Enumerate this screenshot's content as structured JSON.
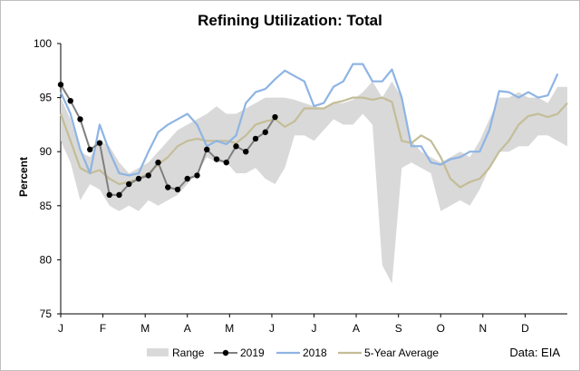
{
  "chart_data": {
    "type": "line",
    "title": "Refining Utilization: Total",
    "xlabel": "",
    "ylabel": "Percent",
    "ylim": [
      75,
      100
    ],
    "yticks": [
      75,
      80,
      85,
      90,
      95,
      100
    ],
    "xlim": [
      0,
      52
    ],
    "month_labels": [
      "J",
      "F",
      "M",
      "A",
      "M",
      "J",
      "J",
      "A",
      "S",
      "O",
      "N",
      "D"
    ],
    "month_positions": [
      0,
      4.33,
      8.67,
      13,
      17.33,
      21.67,
      26,
      30.33,
      34.67,
      39,
      43.33,
      47.67
    ],
    "source": "Data: EIA",
    "series": [
      {
        "name": "Range",
        "kind": "area",
        "color": "#d9d9d9",
        "x": [
          0,
          1,
          2,
          3,
          4,
          5,
          6,
          7,
          8,
          9,
          10,
          11,
          12,
          13,
          14,
          15,
          16,
          17,
          18,
          19,
          20,
          21,
          22,
          23,
          24,
          25,
          26,
          27,
          28,
          29,
          30,
          31,
          32,
          33,
          34,
          35,
          36,
          37,
          38,
          39,
          40,
          41,
          42,
          43,
          44,
          45,
          46,
          47,
          48,
          49,
          50,
          51,
          52
        ],
        "upper": [
          95.0,
          93.0,
          90.0,
          89.5,
          91.0,
          90.5,
          89.0,
          88.0,
          88.5,
          89.0,
          90.0,
          91.0,
          92.0,
          92.5,
          93.0,
          93.5,
          94.2,
          93.5,
          93.5,
          94.0,
          94.5,
          95.0,
          95.0,
          95.0,
          94.8,
          94.5,
          94.2,
          94.0,
          94.5,
          94.5,
          94.8,
          95.5,
          96.5,
          95.0,
          96.5,
          95.0,
          91.0,
          90.0,
          89.5,
          89.0,
          89.5,
          90.0,
          89.5,
          91.0,
          93.0,
          95.0,
          95.0,
          95.5,
          95.0,
          95.0,
          94.5,
          96.0,
          96.0
        ],
        "lower": [
          91.0,
          89.0,
          85.5,
          87.0,
          86.5,
          85.0,
          84.5,
          85.0,
          84.5,
          85.5,
          85.0,
          85.5,
          86.0,
          87.0,
          88.0,
          89.5,
          89.0,
          89.0,
          88.0,
          88.0,
          88.5,
          87.5,
          87.0,
          88.5,
          91.5,
          91.5,
          91.0,
          92.0,
          93.0,
          92.5,
          92.5,
          93.5,
          92.5,
          79.5,
          77.8,
          88.5,
          89.0,
          88.5,
          88.0,
          84.5,
          85.0,
          85.5,
          85.0,
          86.5,
          88.5,
          90.0,
          90.0,
          90.5,
          90.5,
          91.5,
          91.5,
          91.0,
          90.5
        ]
      },
      {
        "name": "2019",
        "kind": "line-markers",
        "color": "#7f7f7f",
        "marker_color": "#000000",
        "x": [
          0,
          1,
          2,
          3,
          4,
          5,
          6,
          7,
          8,
          9,
          10,
          11,
          12,
          13,
          14,
          15,
          16,
          17,
          18,
          19,
          20,
          21,
          22,
          23
        ],
        "values": [
          96.2,
          94.7,
          93.0,
          90.2,
          90.8,
          86.0,
          86.0,
          87.0,
          87.5,
          87.8,
          89.0,
          86.7,
          86.5,
          87.5,
          87.8,
          90.2,
          89.3,
          89.0,
          90.5,
          90.0,
          91.2,
          91.8,
          93.2,
          null
        ]
      },
      {
        "name": "2018",
        "kind": "line",
        "color": "#8eb4e3",
        "x": [
          0,
          1,
          2,
          3,
          4,
          5,
          6,
          7,
          8,
          9,
          10,
          11,
          12,
          13,
          14,
          15,
          16,
          17,
          18,
          19,
          20,
          21,
          22,
          23,
          24,
          25,
          26,
          27,
          28,
          29,
          30,
          31,
          32,
          33,
          34,
          35,
          36,
          37,
          38,
          39,
          40,
          41,
          42,
          43,
          44,
          45,
          46,
          47,
          48,
          49,
          50,
          51,
          52
        ],
        "values": [
          95.5,
          93.5,
          90.2,
          88.0,
          92.5,
          90.0,
          88.0,
          87.8,
          88.0,
          90.0,
          91.8,
          92.5,
          93.0,
          93.5,
          92.5,
          90.5,
          91.0,
          90.7,
          91.5,
          94.5,
          95.5,
          95.8,
          96.7,
          97.5,
          97.0,
          96.5,
          94.2,
          94.5,
          96.0,
          96.5,
          98.1,
          98.1,
          96.5,
          96.5,
          97.6,
          95.0,
          90.5,
          90.5,
          89.0,
          88.8,
          89.3,
          89.5,
          90.0,
          90.0,
          92.0,
          95.6,
          95.5,
          95.0,
          95.5,
          95.0,
          95.2,
          97.2,
          null
        ]
      },
      {
        "name": "5-Year Average",
        "kind": "line",
        "color": "#c4bd97",
        "x": [
          0,
          1,
          2,
          3,
          4,
          5,
          6,
          7,
          8,
          9,
          10,
          11,
          12,
          13,
          14,
          15,
          16,
          17,
          18,
          19,
          20,
          21,
          22,
          23,
          24,
          25,
          26,
          27,
          28,
          29,
          30,
          31,
          32,
          33,
          34,
          35,
          36,
          37,
          38,
          39,
          40,
          41,
          42,
          43,
          44,
          45,
          46,
          47,
          48,
          49,
          50,
          51,
          52
        ],
        "values": [
          93.5,
          91.0,
          88.5,
          88.0,
          88.3,
          87.5,
          87.0,
          87.2,
          87.5,
          88.0,
          88.8,
          89.5,
          90.5,
          91.0,
          91.2,
          91.0,
          91.0,
          91.0,
          90.8,
          91.5,
          92.5,
          92.8,
          93.0,
          92.3,
          92.8,
          94.0,
          94.0,
          94.0,
          94.5,
          94.7,
          95.0,
          95.0,
          94.8,
          95.0,
          94.6,
          91.0,
          90.8,
          91.5,
          91.0,
          89.5,
          87.5,
          86.7,
          87.2,
          87.5,
          88.5,
          90.0,
          91.0,
          92.5,
          93.3,
          93.5,
          93.2,
          93.5,
          94.5
        ]
      }
    ],
    "legend": {
      "placement": "bottom",
      "entries": [
        "Range",
        "2019",
        "2018",
        "5-Year Average"
      ]
    }
  }
}
